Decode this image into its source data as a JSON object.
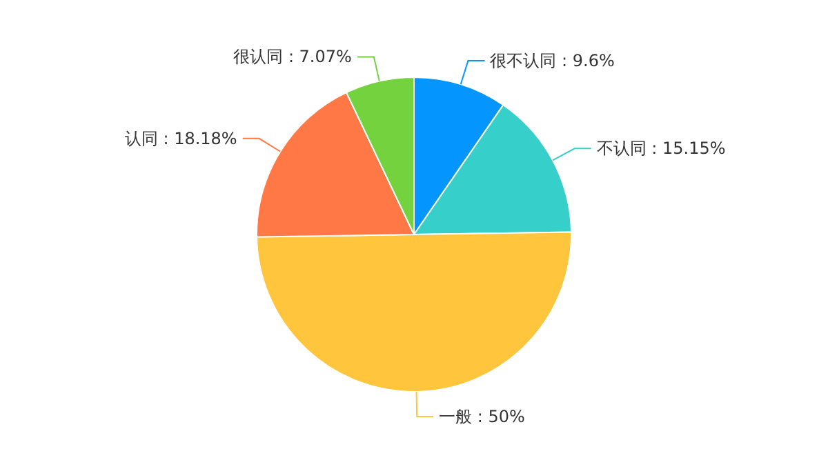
{
  "chart_data": {
    "type": "pie",
    "categories": [
      "很不认同",
      "不认同",
      "一般",
      "认同",
      "很认同"
    ],
    "values": [
      9.6,
      15.15,
      50,
      18.18,
      7.07
    ],
    "value_labels": [
      "9.6%",
      "15.15%",
      "50%",
      "18.18%",
      "7.07%"
    ],
    "colors": [
      "#0595ff",
      "#36cfca",
      "#ffc53d",
      "#ff7845",
      "#74d23f"
    ]
  }
}
